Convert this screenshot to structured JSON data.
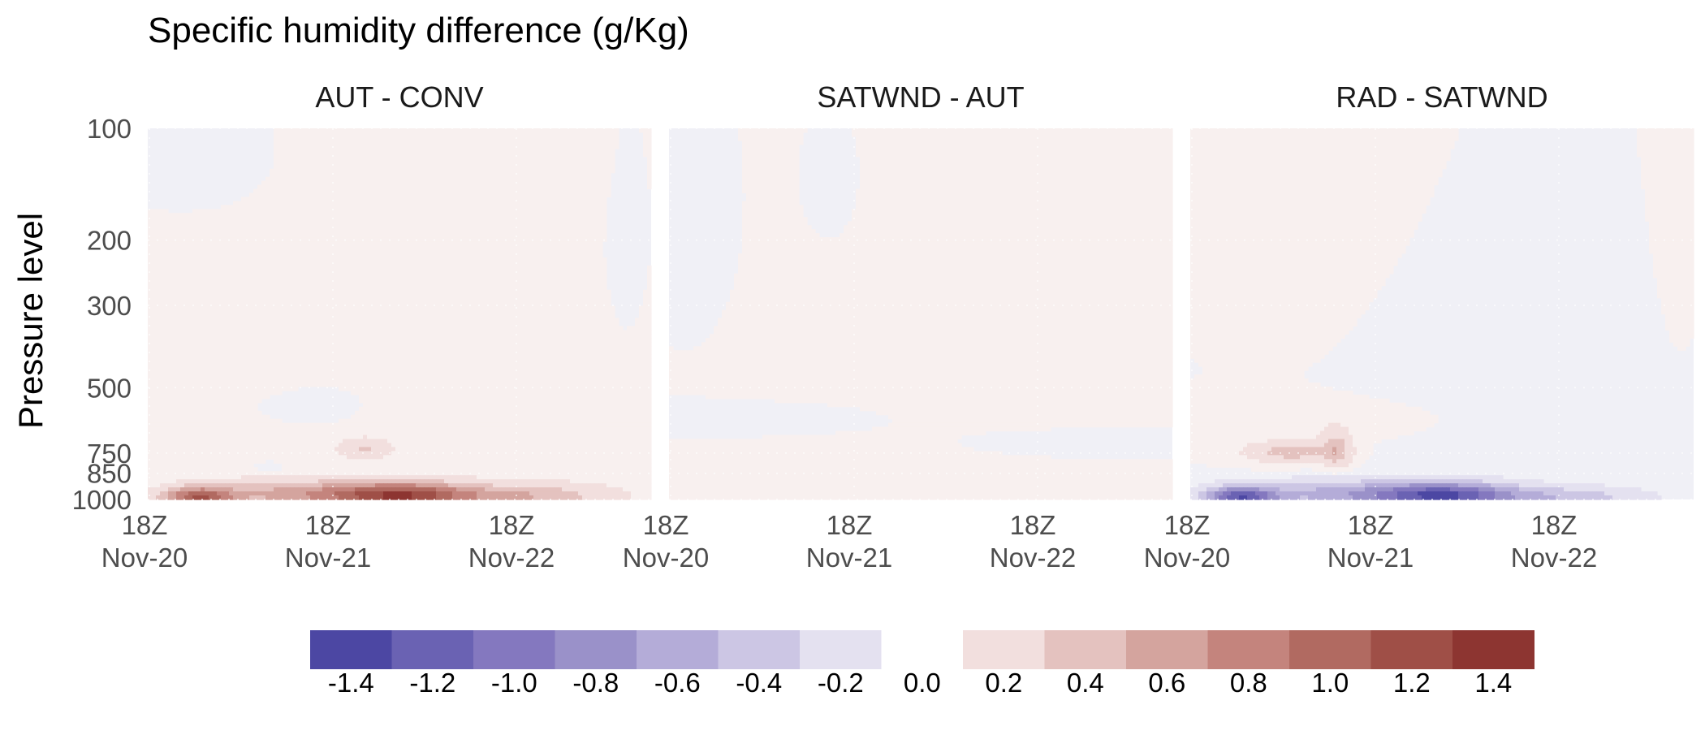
{
  "chart_data": {
    "type": "heatmap",
    "title": "Specific humidity difference (g/Kg)",
    "ylabel": "Pressure level",
    "xlabel": "",
    "y_axis_scale": "log",
    "y_axis_inverted": true,
    "ylim": [
      100,
      1000
    ],
    "y_ticks": [
      100,
      200,
      300,
      500,
      750,
      850,
      1000
    ],
    "x_ticks": [
      {
        "line1": "18Z",
        "line2": "Nov-20"
      },
      {
        "line1": "18Z",
        "line2": "Nov-21"
      },
      {
        "line1": "18Z",
        "line2": "Nov-22"
      }
    ],
    "panels": [
      {
        "title": "AUT - CONV",
        "features": [
          {
            "t": 0.1,
            "p": 985,
            "st": 0.05,
            "sp": 0.045,
            "v": 1.0
          },
          {
            "t": 0.5,
            "p": 975,
            "st": 0.1,
            "sp": 0.055,
            "v": 1.25
          },
          {
            "t": 0.28,
            "p": 965,
            "st": 0.11,
            "sp": 0.06,
            "v": 0.5
          },
          {
            "t": 0.75,
            "p": 980,
            "st": 0.11,
            "sp": 0.05,
            "v": 0.45
          },
          {
            "t": 0.43,
            "p": 730,
            "st": 0.035,
            "sp": 0.045,
            "v": 0.3
          },
          {
            "t": 0.24,
            "p": 820,
            "st": 0.015,
            "sp": 0.02,
            "v": -0.15
          },
          {
            "t": 0.85,
            "p": 500,
            "st": 0.28,
            "sp": 0.5,
            "v": 0.08
          },
          {
            "t": 0.2,
            "p": 300,
            "st": 0.1,
            "sp": 0.5,
            "v": 0.08
          },
          {
            "t": 0.55,
            "p": 150,
            "st": 0.2,
            "sp": 0.3,
            "v": 0.08
          },
          {
            "t": 0.15,
            "p": 130,
            "st": 0.08,
            "sp": 0.2,
            "v": -0.08
          },
          {
            "t": 0.95,
            "p": 250,
            "st": 0.03,
            "sp": 0.4,
            "v": -0.08
          },
          {
            "t": 0.75,
            "p": 500,
            "st": 0.08,
            "sp": 0.08,
            "v": -0.06
          },
          {
            "t": 0.3,
            "p": 550,
            "st": 0.1,
            "sp": 0.1,
            "v": -0.06
          }
        ]
      },
      {
        "title": "SATWND - AUT",
        "features": [
          {
            "t": 0.55,
            "p": 350,
            "st": 0.3,
            "sp": 0.7,
            "v": 0.07
          },
          {
            "t": 0.05,
            "p": 200,
            "st": 0.06,
            "sp": 0.4,
            "v": -0.07
          },
          {
            "t": 0.32,
            "p": 150,
            "st": 0.04,
            "sp": 0.25,
            "v": -0.07
          },
          {
            "t": 0.25,
            "p": 600,
            "st": 0.2,
            "sp": 0.08,
            "v": -0.07
          },
          {
            "t": 0.75,
            "p": 700,
            "st": 0.2,
            "sp": 0.08,
            "v": -0.06
          },
          {
            "t": 0.3,
            "p": 850,
            "st": 0.2,
            "sp": 0.06,
            "v": 0.06
          }
        ]
      },
      {
        "title": "RAD - SATWND",
        "features": [
          {
            "t": 0.1,
            "p": 985,
            "st": 0.05,
            "sp": 0.045,
            "v": -1.2
          },
          {
            "t": 0.5,
            "p": 975,
            "st": 0.1,
            "sp": 0.055,
            "v": -1.3
          },
          {
            "t": 0.28,
            "p": 965,
            "st": 0.11,
            "sp": 0.06,
            "v": -0.5
          },
          {
            "t": 0.75,
            "p": 985,
            "st": 0.11,
            "sp": 0.045,
            "v": -0.4
          },
          {
            "t": 0.2,
            "p": 745,
            "st": 0.06,
            "sp": 0.045,
            "v": 0.4
          },
          {
            "t": 0.29,
            "p": 730,
            "st": 0.02,
            "sp": 0.08,
            "v": 0.4
          },
          {
            "t": 0.24,
            "p": 200,
            "st": 0.12,
            "sp": 0.5,
            "v": 0.07
          },
          {
            "t": 0.97,
            "p": 180,
            "st": 0.03,
            "sp": 0.5,
            "v": 0.07
          },
          {
            "t": 0.6,
            "p": 400,
            "st": 0.25,
            "sp": 0.5,
            "v": -0.06
          },
          {
            "t": 0.3,
            "p": 600,
            "st": 0.2,
            "sp": 0.1,
            "v": 0.06
          }
        ]
      }
    ],
    "legend": {
      "placement": "bottom",
      "levels": [
        -1.4,
        -1.2,
        -1.0,
        -0.8,
        -0.6,
        -0.4,
        -0.2,
        0.0,
        0.2,
        0.4,
        0.6,
        0.8,
        1.0,
        1.2,
        1.4
      ],
      "labels": [
        "-1.4",
        "-1.2",
        "-1.0",
        "-0.8",
        "-0.6",
        "-0.4",
        "-0.2",
        "0.0",
        "0.2",
        "0.4",
        "0.6",
        "0.8",
        "1.0",
        "1.2",
        "1.4"
      ],
      "colors": [
        "#4c47a3",
        "#6a62b3",
        "#8478bf",
        "#9a91c9",
        "#b4acd8",
        "#ccc6e4",
        "#e4e1f0",
        "#ffffff",
        "#f2dfde",
        "#e4c2bf",
        "#d4a49e",
        "#c4847d",
        "#b16a61",
        "#9f4f47",
        "#8d3531"
      ]
    }
  }
}
